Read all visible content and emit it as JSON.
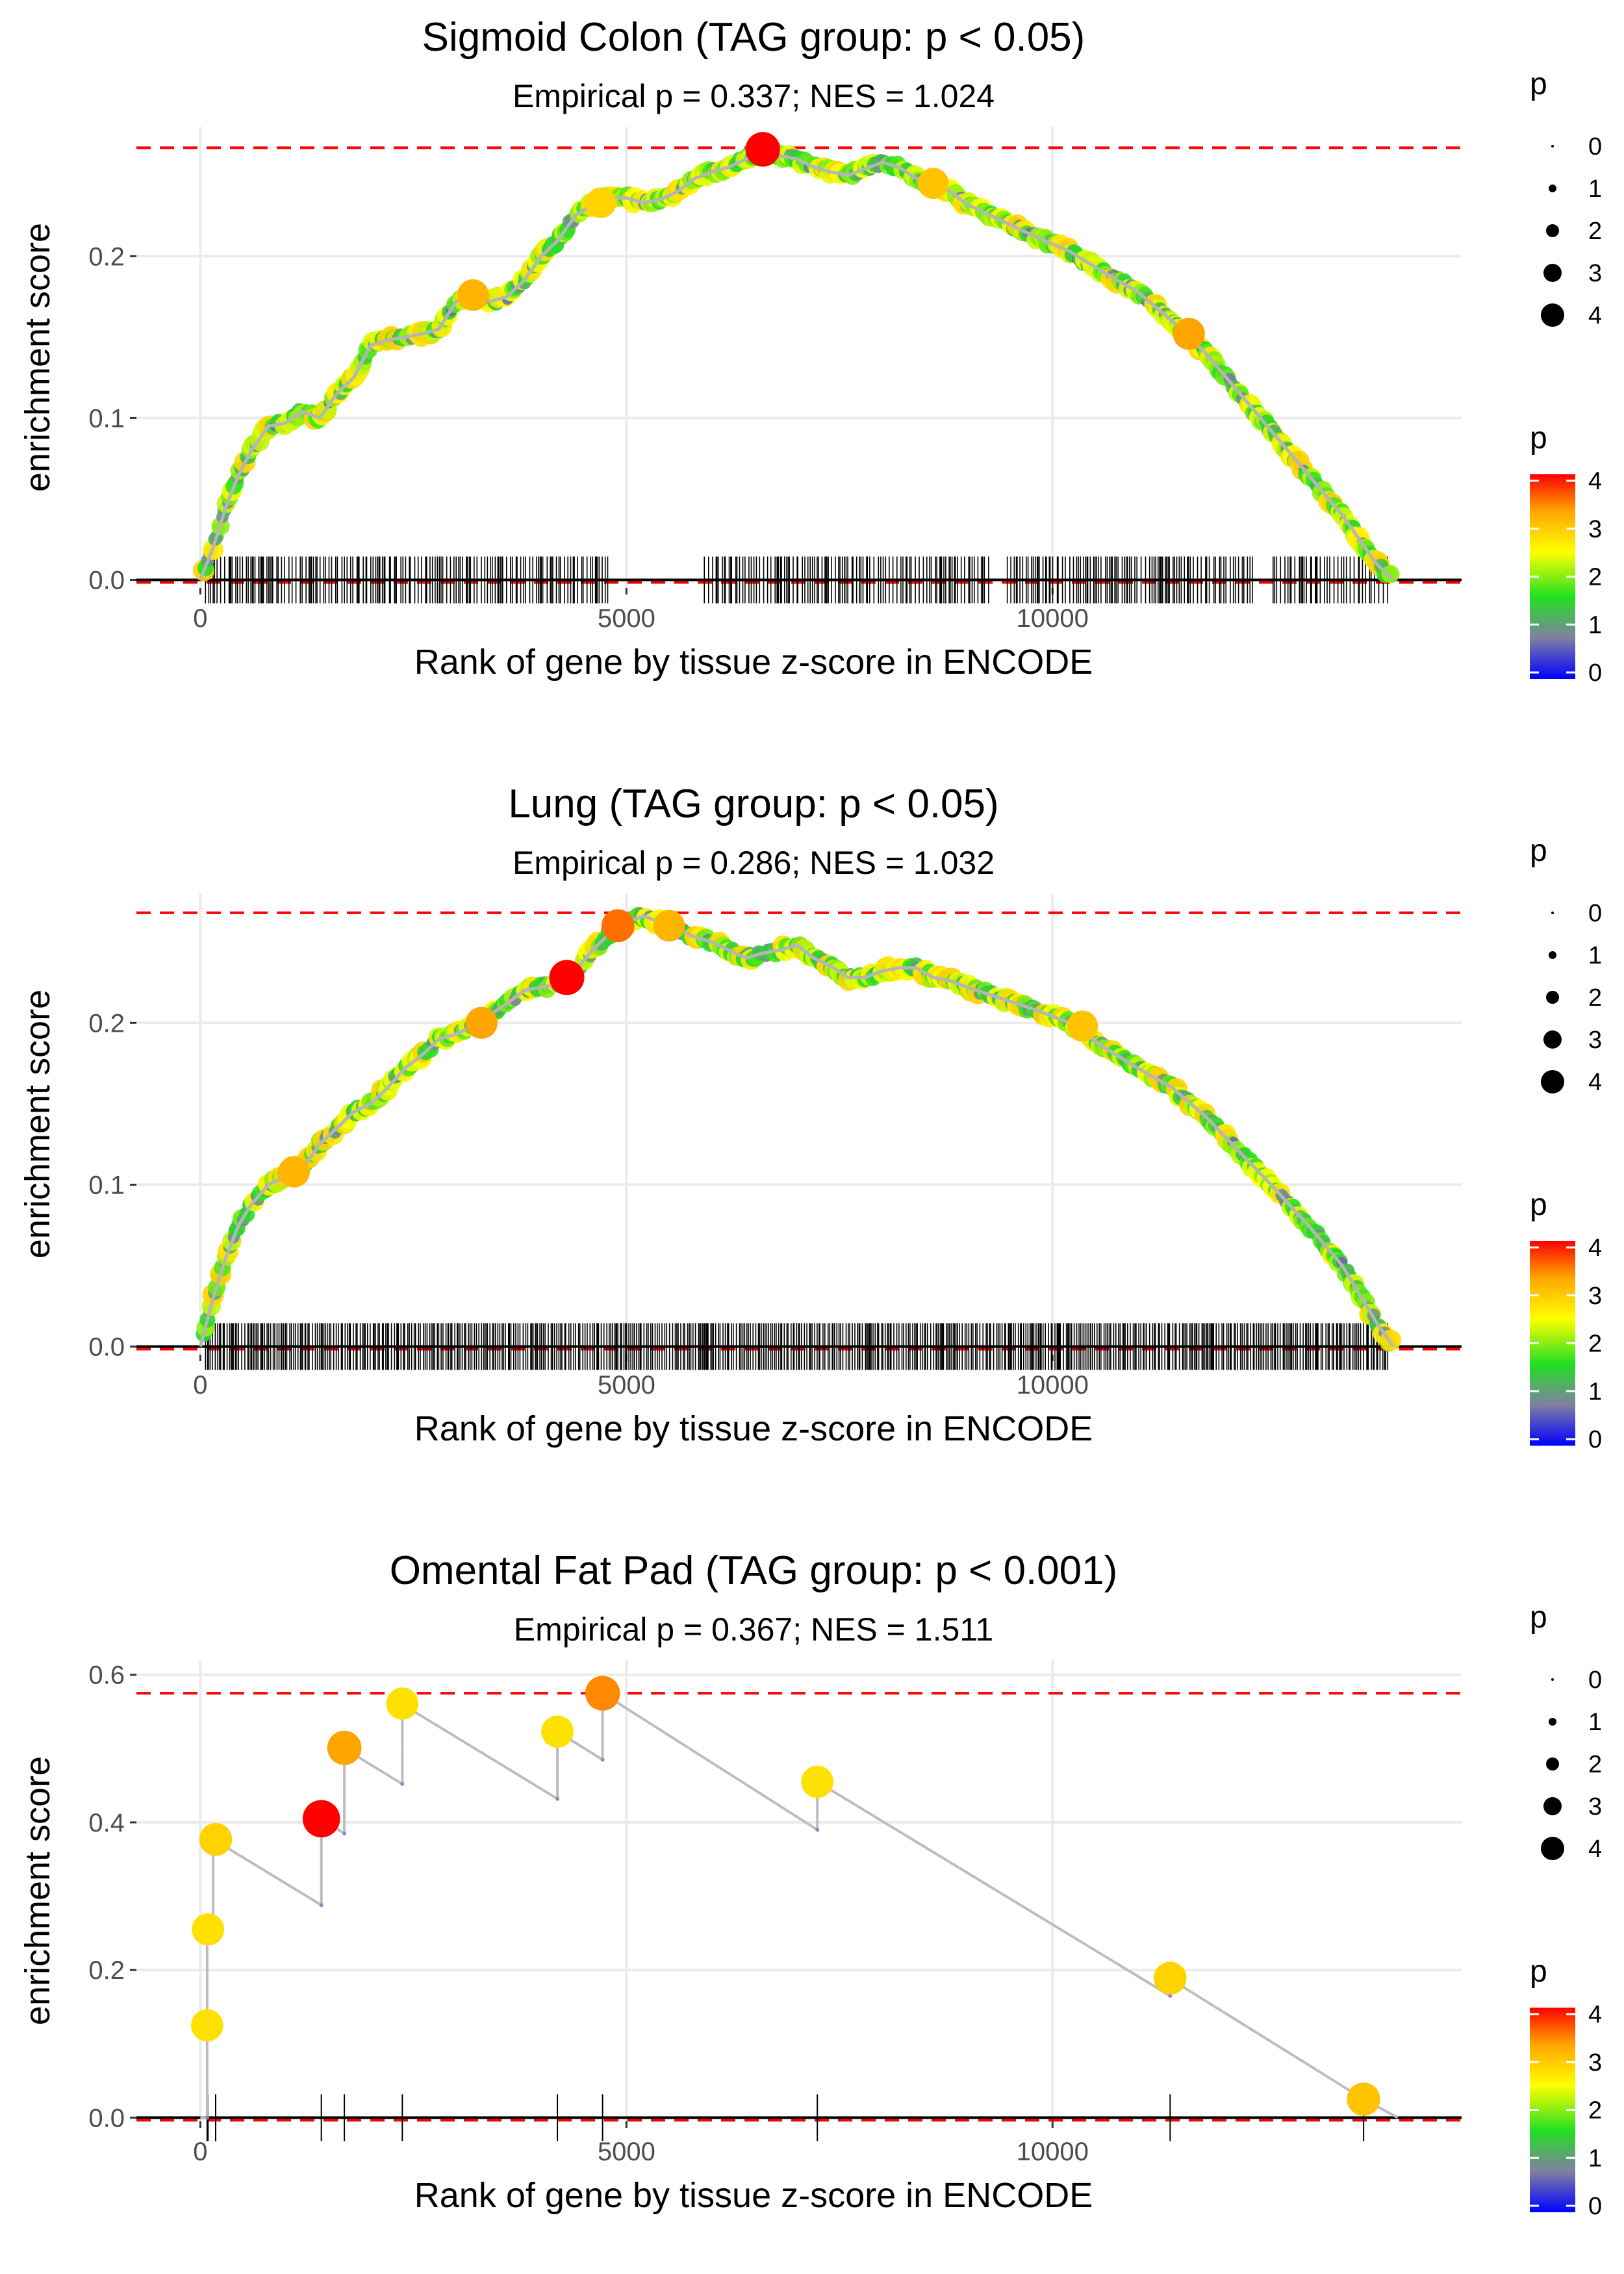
{
  "chart_data": [
    {
      "type": "line",
      "title": "Sigmoid Colon (TAG group: p < 0.05)",
      "subtitle": "Empirical p = 0.337; NES = 1.024",
      "xlabel": "Rank of gene by tissue z-score in ENCODE",
      "ylabel": "enrichment score",
      "xlim": [
        -750,
        14800
      ],
      "ylim": [
        -0.005,
        0.28
      ],
      "xticks": [
        0,
        5000,
        10000
      ],
      "xtick_labels": [
        "0",
        "5000",
        "10000"
      ],
      "yticks": [
        0.0,
        0.1,
        0.2
      ],
      "ytick_labels": [
        "0.0",
        "0.1",
        "0.2"
      ],
      "max_es": 0.267,
      "series": {
        "name": "running enrichment score",
        "x": [
          0,
          150,
          300,
          450,
          600,
          800,
          1000,
          1200,
          1400,
          1600,
          1800,
          2000,
          2200,
          2400,
          2600,
          2800,
          3000,
          3200,
          3400,
          3600,
          3800,
          4000,
          4200,
          4400,
          4600,
          4800,
          5000,
          5200,
          5400,
          5600,
          5800,
          6000,
          6200,
          6400,
          6600,
          6800,
          7000,
          7200,
          7400,
          7600,
          7800,
          8000,
          8200,
          8400,
          8600,
          8800,
          9000,
          9400,
          9800,
          10200,
          10600,
          11000,
          11400,
          11800,
          12200,
          12600,
          13000,
          13400,
          13800,
          14000
        ],
        "y": [
          0.0,
          0.02,
          0.045,
          0.065,
          0.08,
          0.095,
          0.097,
          0.104,
          0.1,
          0.115,
          0.125,
          0.145,
          0.148,
          0.15,
          0.152,
          0.155,
          0.172,
          0.176,
          0.172,
          0.175,
          0.185,
          0.2,
          0.21,
          0.225,
          0.232,
          0.236,
          0.236,
          0.233,
          0.235,
          0.24,
          0.248,
          0.252,
          0.255,
          0.26,
          0.266,
          0.262,
          0.26,
          0.255,
          0.252,
          0.25,
          0.254,
          0.258,
          0.255,
          0.248,
          0.244,
          0.24,
          0.232,
          0.222,
          0.212,
          0.203,
          0.19,
          0.178,
          0.16,
          0.14,
          0.115,
          0.09,
          0.065,
          0.04,
          0.01,
          0.0
        ]
      },
      "p_value_palette": [
        "#0000ff",
        "#7f7fa0",
        "#2ce02c",
        "#ffff00",
        "#ffb000",
        "#ff0000"
      ],
      "highlight_points": [
        {
          "x": 3200,
          "y": 0.176,
          "p": 3.5
        },
        {
          "x": 6600,
          "y": 0.266,
          "p": 4.2
        },
        {
          "x": 4700,
          "y": 0.233,
          "p": 3.3
        },
        {
          "x": 11600,
          "y": 0.152,
          "p": 3.6
        },
        {
          "x": 8600,
          "y": 0.245,
          "p": 3.4
        }
      ],
      "gene_hits_density": "dense",
      "gene_hits_gaps": [
        [
          4800,
          5900
        ],
        [
          9250,
          9450
        ],
        [
          12350,
          12550
        ]
      ]
    },
    {
      "type": "line",
      "title": "Lung (TAG group: p < 0.05)",
      "subtitle": "Empirical p = 0.286; NES = 1.032",
      "xlabel": "Rank of gene by tissue z-score in ENCODE",
      "ylabel": "enrichment score",
      "xlim": [
        -750,
        14800
      ],
      "ylim": [
        -0.005,
        0.28
      ],
      "xticks": [
        0,
        5000,
        10000
      ],
      "xtick_labels": [
        "0",
        "5000",
        "10000"
      ],
      "yticks": [
        0.0,
        0.1,
        0.2
      ],
      "ytick_labels": [
        "0.0",
        "0.1",
        "0.2"
      ],
      "max_es": 0.268,
      "series": {
        "name": "running enrichment score",
        "x": [
          0,
          150,
          300,
          450,
          600,
          800,
          1000,
          1200,
          1400,
          1600,
          1800,
          2000,
          2200,
          2400,
          2600,
          2800,
          3000,
          3200,
          3400,
          3600,
          3800,
          4000,
          4200,
          4400,
          4600,
          4800,
          5000,
          5200,
          5400,
          5600,
          5800,
          6000,
          6200,
          6400,
          6600,
          6800,
          7000,
          7200,
          7400,
          7600,
          7800,
          8000,
          8200,
          8400,
          8600,
          8800,
          9000,
          9400,
          9800,
          10200,
          10600,
          11000,
          11400,
          11800,
          12200,
          12600,
          13000,
          13400,
          13800,
          14000
        ],
        "y": [
          0.0,
          0.03,
          0.055,
          0.075,
          0.088,
          0.1,
          0.105,
          0.11,
          0.125,
          0.135,
          0.145,
          0.15,
          0.16,
          0.172,
          0.18,
          0.19,
          0.193,
          0.198,
          0.205,
          0.212,
          0.22,
          0.222,
          0.224,
          0.232,
          0.245,
          0.255,
          0.262,
          0.266,
          0.262,
          0.258,
          0.253,
          0.25,
          0.245,
          0.24,
          0.243,
          0.245,
          0.248,
          0.24,
          0.235,
          0.228,
          0.228,
          0.232,
          0.234,
          0.234,
          0.228,
          0.226,
          0.222,
          0.215,
          0.208,
          0.2,
          0.185,
          0.172,
          0.16,
          0.142,
          0.12,
          0.098,
          0.075,
          0.05,
          0.015,
          0.0
        ]
      },
      "p_value_palette": [
        "#0000ff",
        "#7f7fa0",
        "#2ce02c",
        "#ffff00",
        "#ffb000",
        "#ff0000"
      ],
      "highlight_points": [
        {
          "x": 4300,
          "y": 0.228,
          "p": 4.3
        },
        {
          "x": 4900,
          "y": 0.26,
          "p": 3.8
        },
        {
          "x": 5500,
          "y": 0.26,
          "p": 3.5
        },
        {
          "x": 3300,
          "y": 0.2,
          "p": 3.6
        },
        {
          "x": 1100,
          "y": 0.108,
          "p": 3.5
        },
        {
          "x": 10350,
          "y": 0.198,
          "p": 3.4
        }
      ],
      "gene_hits_density": "dense",
      "gene_hits_gaps": []
    },
    {
      "type": "scatter",
      "title": "Omental Fat Pad (TAG group: p < 0.001)",
      "subtitle": "Empirical p = 0.367; NES = 1.511",
      "xlabel": "Rank of gene by tissue z-score in ENCODE",
      "ylabel": "enrichment score",
      "xlim": [
        -750,
        14800
      ],
      "ylim": [
        -0.005,
        0.62
      ],
      "xticks": [
        0,
        5000,
        10000
      ],
      "xtick_labels": [
        "0",
        "5000",
        "10000"
      ],
      "yticks": [
        0.0,
        0.2,
        0.4,
        0.6
      ],
      "ytick_labels": [
        "0.0",
        "0.2",
        "0.4",
        "0.6"
      ],
      "max_es": 0.575,
      "series": {
        "name": "running enrichment score",
        "x": [
          0,
          80,
          80,
          80,
          80,
          150,
          150,
          180,
          1420,
          1420,
          1690,
          1690,
          2370,
          2370,
          4190,
          4190,
          4720,
          4720,
          7240,
          7240,
          11380,
          11380,
          13650,
          14050
        ],
        "y": [
          0.0,
          0.0,
          0.125,
          0.125,
          0.255,
          0.255,
          0.375,
          0.375,
          0.288,
          0.405,
          0.385,
          0.5,
          0.452,
          0.56,
          0.432,
          0.523,
          0.485,
          0.575,
          0.39,
          0.455,
          0.165,
          0.188,
          0.025,
          0.0
        ]
      },
      "points": [
        {
          "x": 80,
          "y": 0.125,
          "p": 3.2
        },
        {
          "x": 90,
          "y": 0.255,
          "p": 3.2
        },
        {
          "x": 180,
          "y": 0.377,
          "p": 3.3
        },
        {
          "x": 1420,
          "y": 0.405,
          "p": 4.2
        },
        {
          "x": 1690,
          "y": 0.501,
          "p": 3.6
        },
        {
          "x": 2370,
          "y": 0.561,
          "p": 3.2
        },
        {
          "x": 4190,
          "y": 0.523,
          "p": 3.2
        },
        {
          "x": 4720,
          "y": 0.575,
          "p": 3.7
        },
        {
          "x": 7240,
          "y": 0.455,
          "p": 3.2
        },
        {
          "x": 11380,
          "y": 0.189,
          "p": 3.3
        },
        {
          "x": 13650,
          "y": 0.025,
          "p": 3.4
        }
      ],
      "gene_hits": [
        80,
        90,
        180,
        1420,
        1690,
        2370,
        4190,
        4720,
        7240,
        11380,
        13650
      ]
    }
  ],
  "legends": {
    "size_title": "p",
    "size_labels": [
      "0",
      "1",
      "2",
      "3",
      "4"
    ],
    "color_title": "p",
    "color_labels": [
      "4",
      "3",
      "2",
      "1",
      "0"
    ]
  }
}
